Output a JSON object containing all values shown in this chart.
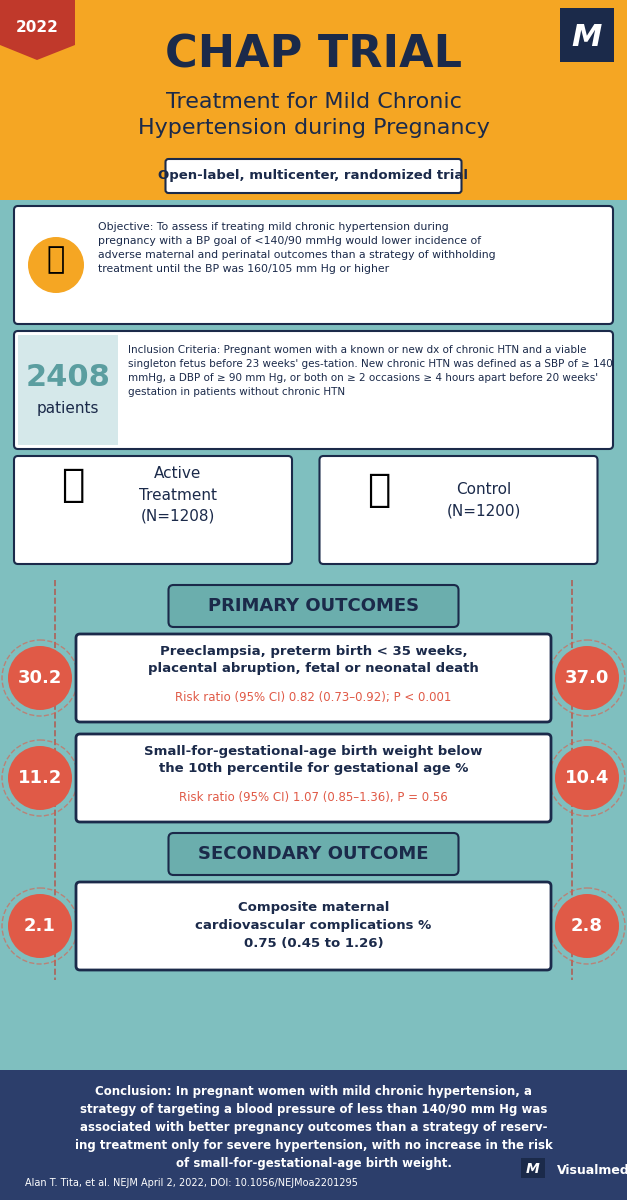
{
  "bg_top_color": "#F5A623",
  "bg_mid_color": "#7FBFBF",
  "bg_bottom_color": "#2C3E6B",
  "title": "CHAP TRIAL",
  "subtitle": "Treatment for Mild Chronic\nHypertension during Pregnancy",
  "trial_type": "Open-label, multicenter, randomized trial",
  "year": "2022",
  "objective": "Objective: To assess if treating mild chronic hypertension during\npregnancy with a BP goal of <140/90 mmHg would lower incidence of\nadverse maternal and perinatal outcomes than a strategy of withholding\ntreatment until the BP was 160/105 mm Hg or higher",
  "n_patients": "2408",
  "patients_label": "patients",
  "inclusion_text": "Inclusion Criteria: Pregnant women with a known or new dx of chronic HTN and a viable singleton fetus before 23 weeks' ges-tation. New chronic HTN was defined as a SBP of ≥ 140 mmHg, a DBP of ≥ 90 mm Hg, or both on ≥ 2 occasions ≥ 4 hours apart before 20 weeks' gestation in patients without chronic HTN",
  "arm1_label": "Active\nTreatment\n(N=1208)",
  "arm2_label": "Control\n(N=1200)",
  "primary_outcomes_title": "PRIMARY OUTCOMES",
  "outcome1_text": "Preeclampsia, preterm birth < 35 weeks,\nplacental abruption, fetal or neonatal death",
  "outcome1_stat": "Risk ratio (95% CI) 0.82 (0.73–0.92); P < 0.001",
  "outcome1_left": "30.2",
  "outcome1_right": "37.0",
  "outcome2_text": "Small-for-gestational-age birth weight below\nthe 10th percentile for gestational age %",
  "outcome2_stat": "Risk ratio (95% CI) 1.07 (0.85–1.36), P = 0.56",
  "outcome2_left": "11.2",
  "outcome2_right": "10.4",
  "secondary_title": "SECONDARY OUTCOME",
  "outcome3_text": "Composite maternal\ncardiovascular complications %\n0.75 (0.45 to 1.26)",
  "outcome3_left": "2.1",
  "outcome3_right": "2.8",
  "conclusion": "Conclusion: In pregnant women with mild chronic hypertension, a\nstrategy of targeting a blood pressure of less than 140/90 mm Hg was\nassociated with better pregnancy outcomes than a strategy of reserv-\ning treatment only for severe hypertension, with no increase in the risk\nof small-for-gestational-age birth weight.",
  "citation": "Alan T. Tita, et al. NEJM April 2, 2022, DOI: 10.1056/NEJMoa2201295",
  "circle_color": "#E05A47",
  "circle_text_color": "#FFFFFF",
  "dark_navy": "#1B2A4A",
  "teal_box_color": "#5B9EA0",
  "box_border_color": "#1B2A4A",
  "stat_color": "#E05A47",
  "header_box_color": "#6BAEAD"
}
